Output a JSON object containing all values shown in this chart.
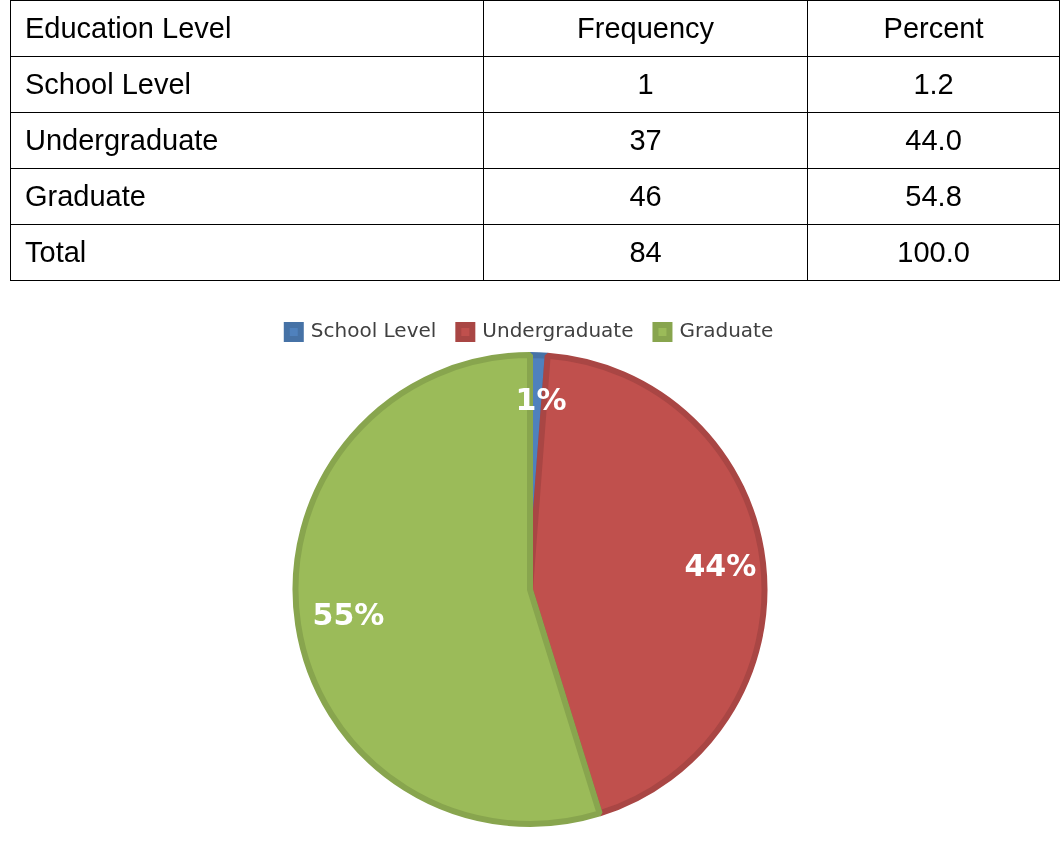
{
  "chart_data": [
    {
      "type": "other",
      "xlabel": "Education Level",
      "categories": [
        "School Level",
        "Undergraduate",
        "Graduate",
        "Total"
      ],
      "series": [
        {
          "name": "Frequency",
          "values": [
            1,
            37,
            46,
            84
          ]
        },
        {
          "name": "Percent",
          "values": [
            1.2,
            44.0,
            54.8,
            100.0
          ],
          "value_labels": [
            "1.2",
            "44.0",
            "54.8",
            "100.0"
          ]
        }
      ],
      "data_labels": true
    },
    {
      "type": "pie",
      "categories": [
        "School Level",
        "Undergraduate",
        "Graduate"
      ],
      "values": [
        1.2,
        44.0,
        54.8
      ],
      "colors": [
        "#4f81bd",
        "#c0504d",
        "#9bbb59"
      ],
      "value_labels": [
        "1%",
        "44%",
        "55%"
      ],
      "legend": "top"
    }
  ]
}
